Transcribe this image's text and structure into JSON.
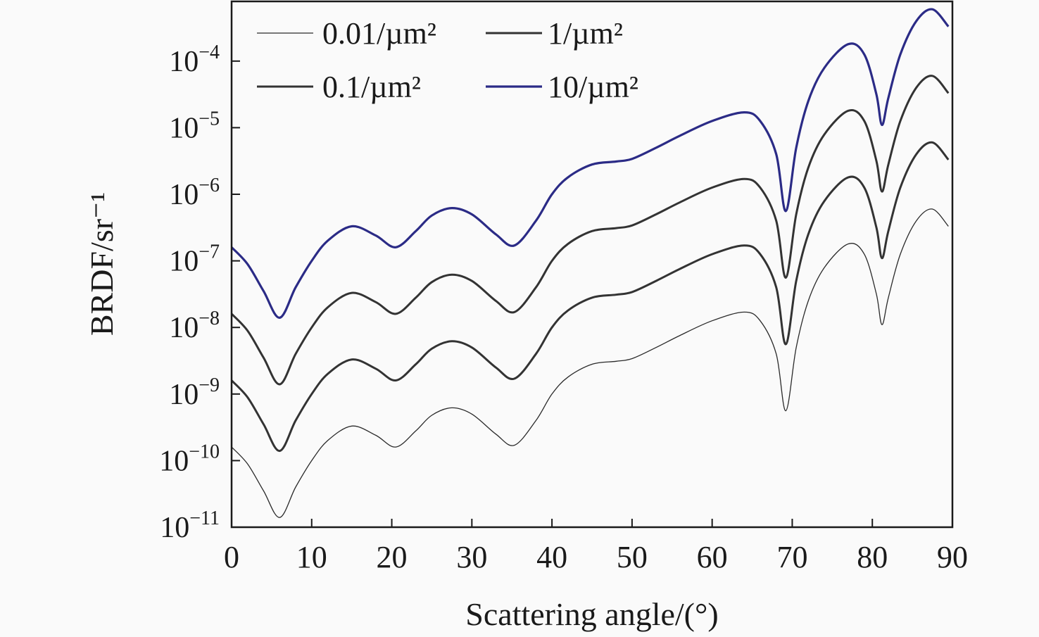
{
  "chart_data": {
    "type": "line",
    "title": "",
    "xlabel": "Scattering angle/(°)",
    "ylabel": "BRDF/sr⁻¹",
    "xlim": [
      0,
      90
    ],
    "ylim": [
      1e-11,
      0.0008
    ],
    "yscale": "log",
    "grid": false,
    "legend_position": "top-left",
    "x_ticks": [
      0,
      10,
      20,
      30,
      40,
      50,
      60,
      70,
      80,
      90
    ],
    "x_tick_labels": [
      "0",
      "10",
      "20",
      "30",
      "40",
      "50",
      "60",
      "70",
      "80",
      "90"
    ],
    "y_ticks": [
      0.0001,
      1e-05,
      1e-06,
      1e-07,
      1e-08,
      1e-09,
      1e-10,
      1e-11
    ],
    "y_tick_labels": [
      {
        "base": "10",
        "exp": "−4"
      },
      {
        "base": "10",
        "exp": "−5"
      },
      {
        "base": "10",
        "exp": "−6"
      },
      {
        "base": "10",
        "exp": "−7"
      },
      {
        "base": "10",
        "exp": "−8"
      },
      {
        "base": "10",
        "exp": "−9"
      },
      {
        "base": "10",
        "exp": "−10"
      },
      {
        "base": "10",
        "exp": "−11"
      }
    ],
    "x": [
      0,
      2,
      4,
      6,
      8,
      10,
      12,
      15,
      18,
      20.5,
      23,
      25,
      27.5,
      30,
      33,
      35.3,
      38,
      40,
      42,
      45,
      48,
      50,
      53,
      56,
      60,
      64,
      66,
      68,
      69.2,
      70.5,
      72,
      74,
      77,
      79,
      80.5,
      81.2,
      82,
      83.5,
      85.5,
      87.5,
      89.5
    ],
    "series": [
      {
        "name": "0.01/µm²",
        "color": "#2a2a2a",
        "width": 1.3,
        "values": [
          1.6e-10,
          8.9e-11,
          3.5e-11,
          1.4e-11,
          4e-11,
          1e-10,
          2e-10,
          3.3e-10,
          2.4e-10,
          1.6e-10,
          2.8e-10,
          4.8e-10,
          6.2e-10,
          5e-10,
          2.5e-10,
          1.7e-10,
          4e-10,
          1e-09,
          1.8e-09,
          2.8e-09,
          3.1e-09,
          3.4e-09,
          5e-09,
          7.6e-09,
          1.26e-08,
          1.7e-08,
          1.26e-08,
          4e-09,
          5.6e-10,
          5e-09,
          2.5e-08,
          7.9e-08,
          1.8e-07,
          1.26e-07,
          3.2e-08,
          1.1e-08,
          2.8e-08,
          1.26e-07,
          4e-07,
          6e-07,
          3.3e-07
        ]
      },
      {
        "name": "0.1/µm²",
        "color": "#333333",
        "width": 3,
        "values": [
          1.6e-09,
          8.9e-10,
          3.5e-10,
          1.4e-10,
          4e-10,
          1e-09,
          2e-09,
          3.3e-09,
          2.4e-09,
          1.6e-09,
          2.8e-09,
          4.8e-09,
          6.2e-09,
          5e-09,
          2.5e-09,
          1.7e-09,
          4e-09,
          1e-08,
          1.8e-08,
          2.8e-08,
          3.1e-08,
          3.4e-08,
          5e-08,
          7.6e-08,
          1.26e-07,
          1.7e-07,
          1.26e-07,
          4e-08,
          5.6e-09,
          5e-08,
          2.5e-07,
          7.9e-07,
          1.8e-06,
          1.26e-06,
          3.2e-07,
          1.1e-07,
          2.8e-07,
          1.26e-06,
          4e-06,
          6e-06,
          3.3e-06
        ]
      },
      {
        "name": "1/µm²",
        "color": "#333333",
        "width": 3,
        "values": [
          1.6e-08,
          8.9e-09,
          3.5e-09,
          1.4e-09,
          4e-09,
          1e-08,
          2e-08,
          3.3e-08,
          2.4e-08,
          1.6e-08,
          2.8e-08,
          4.8e-08,
          6.2e-08,
          5e-08,
          2.5e-08,
          1.7e-08,
          4e-08,
          1e-07,
          1.8e-07,
          2.8e-07,
          3.1e-07,
          3.4e-07,
          5e-07,
          7.6e-07,
          1.26e-06,
          1.7e-06,
          1.26e-06,
          4e-07,
          5.6e-08,
          5e-07,
          2.5e-06,
          7.9e-06,
          1.8e-05,
          1.26e-05,
          3.2e-06,
          1.1e-06,
          2.8e-06,
          1.26e-05,
          4e-05,
          6e-05,
          3.3e-05
        ]
      },
      {
        "name": "10/µm²",
        "color": "#2b2b86",
        "width": 3.2,
        "values": [
          1.6e-07,
          8.9e-08,
          3.5e-08,
          1.4e-08,
          4e-08,
          1e-07,
          2e-07,
          3.3e-07,
          2.4e-07,
          1.6e-07,
          2.8e-07,
          4.8e-07,
          6.2e-07,
          5e-07,
          2.5e-07,
          1.7e-07,
          4e-07,
          1e-06,
          1.8e-06,
          2.8e-06,
          3.1e-06,
          3.4e-06,
          5e-06,
          7.6e-06,
          1.26e-05,
          1.7e-05,
          1.26e-05,
          4e-06,
          5.6e-07,
          5e-06,
          2.5e-05,
          7.9e-05,
          0.00018,
          0.000126,
          3.2e-05,
          1.1e-05,
          2.8e-05,
          0.000126,
          0.0004,
          0.0006,
          0.00033
        ]
      }
    ]
  }
}
